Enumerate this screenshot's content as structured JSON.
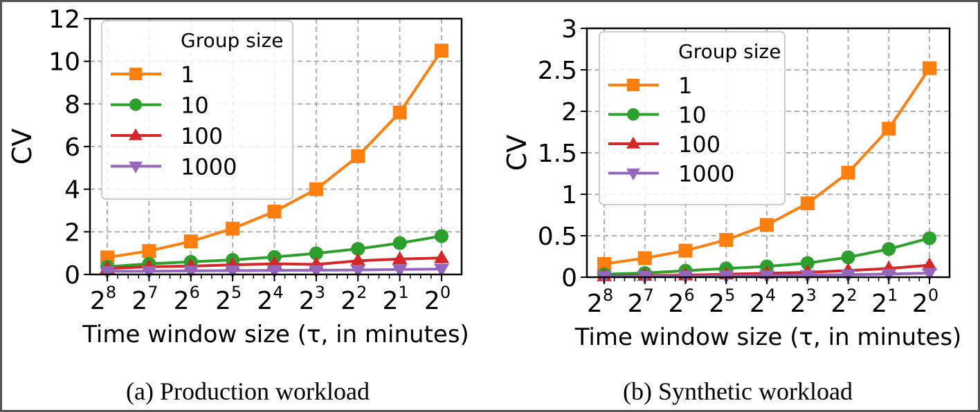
{
  "chart_data": [
    {
      "type": "line",
      "caption": "(a)  Production workload",
      "xlabel": "Time window size (τ, in minutes)",
      "ylabel": "CV",
      "x": [
        "2^8",
        "2^7",
        "2^6",
        "2^5",
        "2^4",
        "2^3",
        "2^2",
        "2^1",
        "2^0"
      ],
      "x_tick_labels": [
        [
          "2",
          "8"
        ],
        [
          "2",
          "7"
        ],
        [
          "2",
          "6"
        ],
        [
          "2",
          "5"
        ],
        [
          "2",
          "4"
        ],
        [
          "2",
          "3"
        ],
        [
          "2",
          "2"
        ],
        [
          "2",
          "1"
        ],
        [
          "2",
          "0"
        ]
      ],
      "x_scale": "log2, inverted",
      "ylim": [
        0,
        12
      ],
      "yticks": [
        0,
        2,
        4,
        6,
        8,
        10,
        12
      ],
      "ytick_labels": [
        "0",
        "2",
        "4",
        "6",
        "8",
        "10",
        "12"
      ],
      "grid": true,
      "legend": {
        "title": "Group size",
        "placement": "top-left"
      },
      "series": [
        {
          "name": "1",
          "color": "#ff7f0e",
          "marker": "square",
          "values": [
            0.8,
            1.1,
            1.55,
            2.15,
            2.95,
            4.0,
            5.55,
            7.6,
            10.5
          ]
        },
        {
          "name": "10",
          "color": "#2ca02c",
          "marker": "circle",
          "values": [
            0.36,
            0.5,
            0.59,
            0.68,
            0.82,
            0.99,
            1.2,
            1.47,
            1.8
          ]
        },
        {
          "name": "100",
          "color": "#d62728",
          "marker": "triangle-up",
          "values": [
            0.28,
            0.36,
            0.39,
            0.45,
            0.5,
            0.47,
            0.64,
            0.72,
            0.77
          ]
        },
        {
          "name": "1000",
          "color": "#9467bd",
          "marker": "triangle-down",
          "values": [
            0.15,
            0.15,
            0.17,
            0.18,
            0.19,
            0.2,
            0.21,
            0.23,
            0.25
          ]
        }
      ]
    },
    {
      "type": "line",
      "caption": "(b)  Synthetic workload",
      "xlabel": "Time window size (τ, in minutes)",
      "ylabel": "CV",
      "x": [
        "2^8",
        "2^7",
        "2^6",
        "2^5",
        "2^4",
        "2^3",
        "2^2",
        "2^1",
        "2^0"
      ],
      "x_tick_labels": [
        [
          "2",
          "8"
        ],
        [
          "2",
          "7"
        ],
        [
          "2",
          "6"
        ],
        [
          "2",
          "5"
        ],
        [
          "2",
          "4"
        ],
        [
          "2",
          "3"
        ],
        [
          "2",
          "2"
        ],
        [
          "2",
          "1"
        ],
        [
          "2",
          "0"
        ]
      ],
      "x_scale": "log2, inverted",
      "ylim": [
        0,
        3
      ],
      "yticks": [
        0,
        0.5,
        1,
        1.5,
        2,
        2.5,
        3
      ],
      "ytick_labels": [
        "0",
        "0.5",
        "1",
        "1.5",
        "2",
        "2.5",
        "3"
      ],
      "grid": true,
      "legend": {
        "title": "Group size",
        "placement": "top-left"
      },
      "series": [
        {
          "name": "1",
          "color": "#ff7f0e",
          "marker": "square",
          "values": [
            0.16,
            0.23,
            0.32,
            0.45,
            0.63,
            0.89,
            1.26,
            1.79,
            2.52
          ]
        },
        {
          "name": "10",
          "color": "#2ca02c",
          "marker": "circle",
          "values": [
            0.036,
            0.05,
            0.078,
            0.105,
            0.13,
            0.17,
            0.24,
            0.34,
            0.47
          ]
        },
        {
          "name": "100",
          "color": "#d62728",
          "marker": "triangle-up",
          "values": [
            0.015,
            0.02,
            0.025,
            0.035,
            0.047,
            0.058,
            0.08,
            0.105,
            0.145
          ]
        },
        {
          "name": "1000",
          "color": "#9467bd",
          "marker": "triangle-down",
          "values": [
            0.01,
            0.012,
            0.015,
            0.018,
            0.02,
            0.025,
            0.03,
            0.038,
            0.05
          ]
        }
      ]
    }
  ]
}
